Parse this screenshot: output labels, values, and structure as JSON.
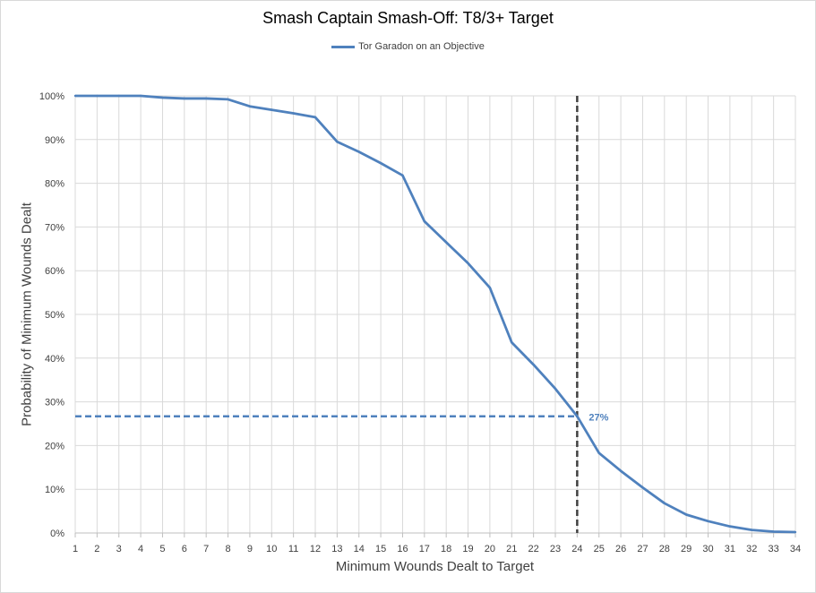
{
  "chart_data": {
    "type": "line",
    "title": "Smash Captain Smash-Off: T8/3+ Target",
    "xlabel": "Minimum Wounds Dealt  to Target",
    "ylabel": "Probability of Minimum Wounds Dealt",
    "xlim": [
      1,
      34
    ],
    "ylim": [
      0,
      1
    ],
    "legend_position": "top-center",
    "grid": true,
    "x": [
      1,
      2,
      3,
      4,
      5,
      6,
      7,
      8,
      9,
      10,
      11,
      12,
      13,
      14,
      15,
      16,
      17,
      18,
      19,
      20,
      21,
      22,
      23,
      24,
      25,
      26,
      27,
      28,
      29,
      30,
      31,
      32,
      33,
      34
    ],
    "x_tick_labels": [
      "1",
      "2",
      "3",
      "4",
      "5",
      "6",
      "7",
      "8",
      "9",
      "10",
      "11",
      "12",
      "13",
      "14",
      "15",
      "16",
      "17",
      "18",
      "19",
      "20",
      "21",
      "22",
      "23",
      "24",
      "25",
      "26",
      "27",
      "28",
      "29",
      "30",
      "31",
      "32",
      "33",
      "34"
    ],
    "y_tick_labels": [
      "0%",
      "10%",
      "20%",
      "30%",
      "40%",
      "50%",
      "60%",
      "70%",
      "80%",
      "90%",
      "100%"
    ],
    "series": [
      {
        "name": "Tor Garadon on an Objective",
        "color": "#4f81bd",
        "values": [
          1.0,
          1.0,
          1.0,
          1.0,
          0.996,
          0.994,
          0.994,
          0.992,
          0.976,
          0.968,
          0.96,
          0.951,
          0.895,
          0.872,
          0.846,
          0.818,
          0.713,
          0.665,
          0.617,
          0.561,
          0.436,
          0.385,
          0.33,
          0.267,
          0.183,
          0.142,
          0.104,
          0.068,
          0.042,
          0.027,
          0.015,
          0.007,
          0.003,
          0.002
        ]
      }
    ],
    "reference": {
      "x": 24,
      "y": 0.267,
      "label": "27%",
      "vertical_color": "#404040",
      "horizontal_color": "#4f81bd"
    }
  }
}
